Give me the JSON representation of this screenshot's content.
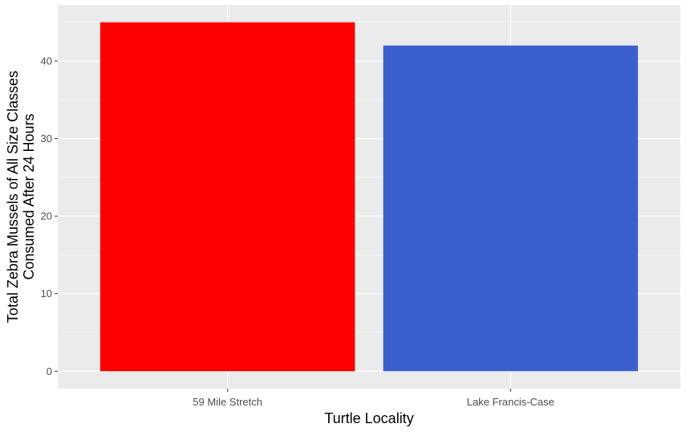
{
  "chart_data": {
    "type": "bar",
    "title": "",
    "xlabel": "Turtle Locality",
    "ylabel_lines": [
      "Total Zebra Mussels of All Size Classes",
      "Consumed After 24 Hours"
    ],
    "categories": [
      "59 Mile Stretch",
      "Lake Francis-Case"
    ],
    "values": [
      45,
      42
    ],
    "bar_colors": [
      "#FF0000",
      "#3B5FCD"
    ],
    "ylim": [
      -2.25,
      47.25
    ],
    "y_ticks": [
      0,
      10,
      20,
      30,
      40
    ],
    "y_minor_ticks": [
      5,
      15,
      25,
      35,
      45
    ],
    "grid": true,
    "legend": "none",
    "panel_color": "#EBEBEB",
    "grid_color": "#FFFFFF"
  }
}
